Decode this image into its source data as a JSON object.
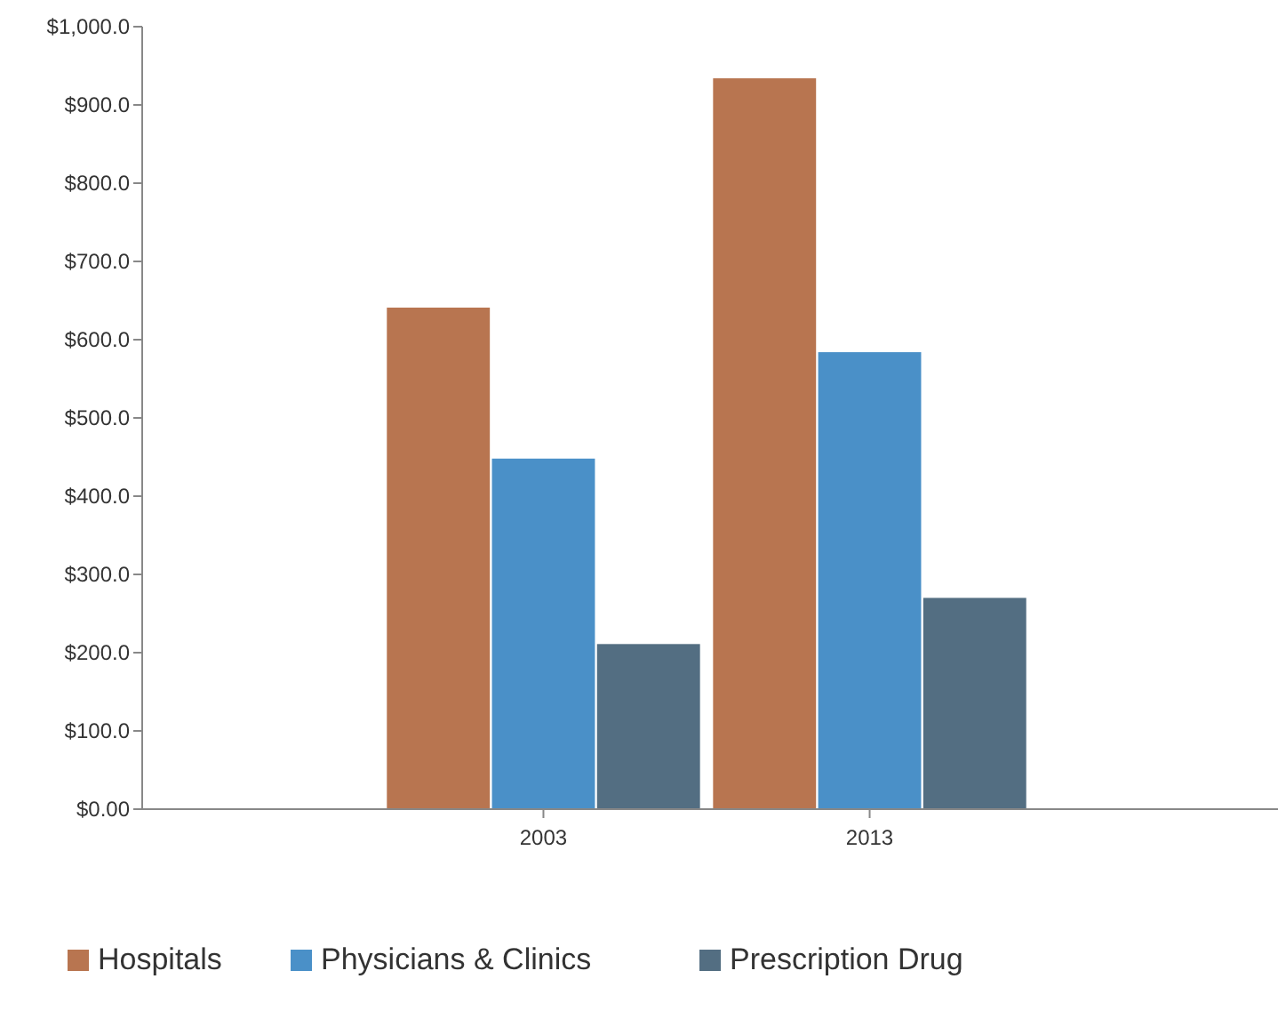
{
  "chart_data": {
    "type": "bar",
    "categories": [
      "2003",
      "2013"
    ],
    "series": [
      {
        "name": "Hospitals",
        "color": "#b87550",
        "values": [
          641,
          934
        ]
      },
      {
        "name": "Physicians & Clinics",
        "color": "#4a90c8",
        "values": [
          448,
          584
        ]
      },
      {
        "name": "Prescription Drug",
        "color": "#536e82",
        "values": [
          211,
          270
        ]
      }
    ],
    "ylim": [
      0,
      1000
    ],
    "yticks": [
      {
        "value": 0,
        "label": "$0.00"
      },
      {
        "value": 100,
        "label": "$100.0"
      },
      {
        "value": 200,
        "label": "$200.0"
      },
      {
        "value": 300,
        "label": "$300.0"
      },
      {
        "value": 400,
        "label": "$400.0"
      },
      {
        "value": 500,
        "label": "$500.0"
      },
      {
        "value": 600,
        "label": "$600.0"
      },
      {
        "value": 700,
        "label": "$700.0"
      },
      {
        "value": 800,
        "label": "$800.0"
      },
      {
        "value": 900,
        "label": "$900.0"
      },
      {
        "value": 1000,
        "label": "$1,000.0"
      }
    ],
    "grid": false,
    "legend": "bottom left"
  }
}
